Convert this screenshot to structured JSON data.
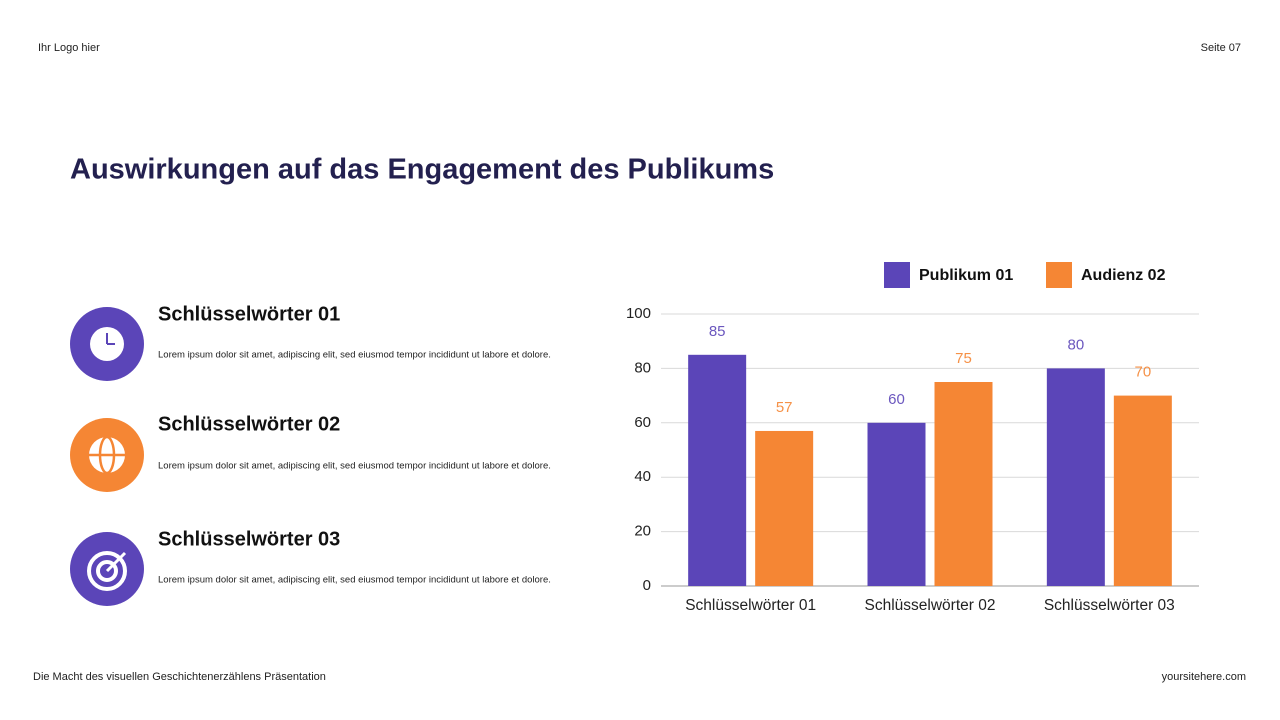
{
  "header": {
    "logo": "Ihr Logo hier",
    "page": "Seite 07"
  },
  "title": "Auswirkungen auf das Engagement des Publikums",
  "items": [
    {
      "title": "Schlüsselwörter 01",
      "text": "Lorem ipsum dolor sit amet, adipiscing elit, sed eiusmod tempor incididunt ut labore et dolore."
    },
    {
      "title": "Schlüsselwörter 02",
      "text": "Lorem ipsum dolor sit amet, adipiscing elit, sed eiusmod tempor incididunt ut labore et dolore."
    },
    {
      "title": "Schlüsselwörter 03",
      "text": "Lorem ipsum dolor sit amet, adipiscing elit, sed eiusmod tempor incididunt ut labore et dolore."
    }
  ],
  "footer": {
    "left": "Die Macht des visuellen Geschichtenerzählens Präsentation",
    "right": "yoursitehere.com"
  },
  "chart_data": {
    "type": "bar",
    "categories": [
      "Schlüsselwörter 01",
      "Schlüsselwörter 02",
      "Schlüsselwörter 03"
    ],
    "series": [
      {
        "name": "Publikum 01",
        "color": "#5b45b8",
        "values": [
          85,
          60,
          80
        ]
      },
      {
        "name": "Audienz 02",
        "color": "#f58634",
        "values": [
          57,
          75,
          70
        ]
      }
    ],
    "ylim": [
      0,
      100
    ],
    "yticks": [
      0,
      20,
      40,
      60,
      80,
      100
    ],
    "grid": true
  }
}
